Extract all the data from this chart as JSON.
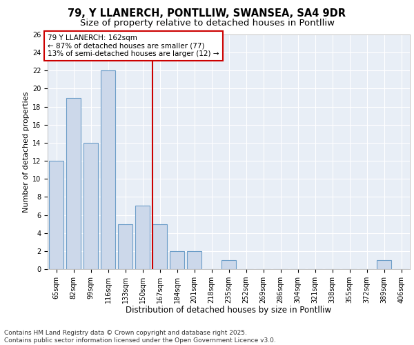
{
  "title_line1": "79, Y LLANERCH, PONTLLIW, SWANSEA, SA4 9DR",
  "title_line2": "Size of property relative to detached houses in Pontlliw",
  "xlabel": "Distribution of detached houses by size in Pontlliw",
  "ylabel": "Number of detached properties",
  "categories": [
    "65sqm",
    "82sqm",
    "99sqm",
    "116sqm",
    "133sqm",
    "150sqm",
    "167sqm",
    "184sqm",
    "201sqm",
    "218sqm",
    "235sqm",
    "252sqm",
    "269sqm",
    "286sqm",
    "304sqm",
    "321sqm",
    "338sqm",
    "355sqm",
    "372sqm",
    "389sqm",
    "406sqm"
  ],
  "values": [
    12,
    19,
    14,
    22,
    5,
    7,
    5,
    2,
    2,
    0,
    1,
    0,
    0,
    0,
    0,
    0,
    0,
    0,
    0,
    1,
    0
  ],
  "bar_color": "#ccd8ea",
  "bar_edge_color": "#6b9dc8",
  "vline_index": 6,
  "vline_color": "#cc0000",
  "annotation_text": "79 Y LLANERCH: 162sqm\n← 87% of detached houses are smaller (77)\n13% of semi-detached houses are larger (12) →",
  "annotation_box_color": "#ffffff",
  "annotation_box_edge_color": "#cc0000",
  "ylim": [
    0,
    26
  ],
  "yticks": [
    0,
    2,
    4,
    6,
    8,
    10,
    12,
    14,
    16,
    18,
    20,
    22,
    24,
    26
  ],
  "background_color": "#e8eef6",
  "grid_color": "#ffffff",
  "footer_text": "Contains HM Land Registry data © Crown copyright and database right 2025.\nContains public sector information licensed under the Open Government Licence v3.0.",
  "title_fontsize": 10.5,
  "subtitle_fontsize": 9.5,
  "xlabel_fontsize": 8.5,
  "ylabel_fontsize": 8,
  "tick_fontsize": 7,
  "annotation_fontsize": 7.5,
  "footer_fontsize": 6.5
}
